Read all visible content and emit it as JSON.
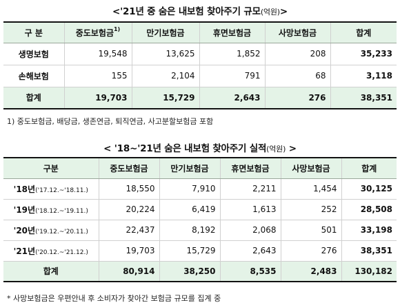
{
  "table1": {
    "title": "<'21년 중 숨은 내보험 찾아주기 규모",
    "title_unit": "(억원)",
    "title_end": ">",
    "headers": [
      "구  분",
      "중도보험금",
      "만기보험금",
      "휴면보험금",
      "사망보험금",
      "합계"
    ],
    "header_sup": "1)",
    "rows": [
      {
        "label": "생명보험",
        "values": [
          "19,548",
          "13,625",
          "1,852",
          "208",
          "35,233"
        ]
      },
      {
        "label": "손해보험",
        "values": [
          "155",
          "2,104",
          "791",
          "68",
          "3,118"
        ]
      }
    ],
    "total": {
      "label": "합계",
      "values": [
        "19,703",
        "15,729",
        "2,643",
        "276",
        "38,351"
      ]
    },
    "footnote": "1) 중도보험금, 배당금, 생존연금, 퇴직연금, 사고분할보험금 포함"
  },
  "table2": {
    "title": "< '18~'21년 숨은 내보험 찾아주기 실적",
    "title_unit": "(억원)",
    "title_end": ">",
    "headers": [
      "구분",
      "중도보험금",
      "만기보험금",
      "휴면보험금",
      "사망보험금",
      "합계"
    ],
    "rows": [
      {
        "year": "'18년",
        "period": "('17.12.~'18.11.)",
        "values": [
          "18,550",
          "7,910",
          "2,211",
          "1,454",
          "30,125"
        ]
      },
      {
        "year": "'19년",
        "period": "('18.12.~'19.11.)",
        "values": [
          "20,224",
          "6,419",
          "1,613",
          "252",
          "28,508"
        ]
      },
      {
        "year": "'20년",
        "period": "('19.12.~'20.11.)",
        "values": [
          "22,437",
          "8,192",
          "2,068",
          "501",
          "33,198"
        ]
      },
      {
        "year": "'21년",
        "period": "('20.12.~'21.12.)",
        "values": [
          "19,703",
          "15,729",
          "2,643",
          "276",
          "38,351"
        ]
      }
    ],
    "total": {
      "label": "합계",
      "values": [
        "80,914",
        "38,250",
        "8,535",
        "2,483",
        "130,182"
      ]
    },
    "footnote": "* 사망보험금은 우편안내 후 소비자가 찾아간 보험금 규모를 집계 중"
  }
}
